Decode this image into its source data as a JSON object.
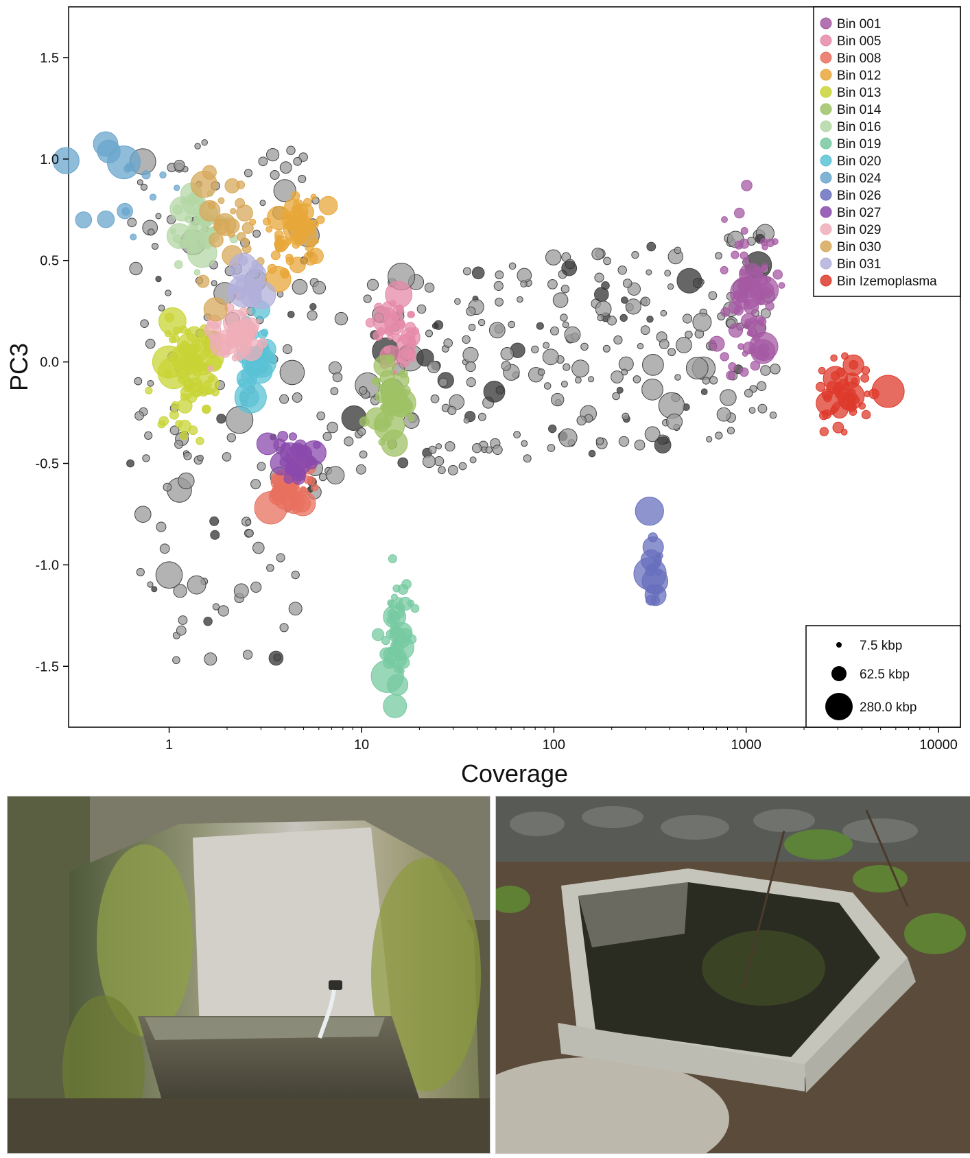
{
  "chart_data": {
    "type": "scatter",
    "xlabel": "Coverage",
    "ylabel": "PC3",
    "x_scale": "log",
    "xlim": [
      0.3,
      13000
    ],
    "ylim": [
      -1.8,
      1.75
    ],
    "x_ticks": [
      1,
      10,
      100,
      1000,
      10000
    ],
    "x_tick_labels": [
      "1",
      "10",
      "100",
      "1000",
      "10000"
    ],
    "y_ticks": [
      1.5,
      1.0,
      0.5,
      0.0,
      -0.5,
      -1.0,
      -1.5
    ],
    "y_tick_labels": [
      "1.5",
      "1.0",
      "0.5",
      "0.0",
      "-0.5",
      "-1.0",
      "-1.5"
    ],
    "grid": false,
    "legend_position": "top-right",
    "size_legend_position": "bottom-right",
    "size_legend": [
      {
        "label": "7.5 kbp",
        "kbp": 7.5
      },
      {
        "label": "62.5 kbp",
        "kbp": 62.5
      },
      {
        "label": "280.0 kbp",
        "kbp": 280.0
      }
    ],
    "unbinned_color": "#9a9a9a",
    "series": [
      {
        "name": "Bin 001",
        "color": "#a55aa3",
        "center": [
          1050,
          0.35
        ],
        "spread": [
          0.07,
          0.22
        ],
        "count": 70
      },
      {
        "name": "Bin 005",
        "color": "#e58aa8",
        "center": [
          15,
          0.15
        ],
        "spread": [
          0.06,
          0.1
        ],
        "count": 35
      },
      {
        "name": "Bin 008",
        "color": "#e8705f",
        "center": [
          4.2,
          -0.62
        ],
        "spread": [
          0.07,
          0.06
        ],
        "count": 35
      },
      {
        "name": "Bin 012",
        "color": "#e8a73a",
        "center": [
          4.4,
          0.65
        ],
        "spread": [
          0.07,
          0.1
        ],
        "count": 60
      },
      {
        "name": "Bin 013",
        "color": "#c8d435",
        "center": [
          1.3,
          -0.05
        ],
        "spread": [
          0.07,
          0.12
        ],
        "count": 80
      },
      {
        "name": "Bin 014",
        "color": "#9fc265",
        "center": [
          14.5,
          -0.2
        ],
        "spread": [
          0.05,
          0.09
        ],
        "count": 45
      },
      {
        "name": "Bin 016",
        "color": "#b4d7a6",
        "center": [
          1.4,
          0.68
        ],
        "spread": [
          0.07,
          0.1
        ],
        "count": 40
      },
      {
        "name": "Bin 019",
        "color": "#77c9a1",
        "center": [
          15,
          -1.35
        ],
        "spread": [
          0.035,
          0.14
        ],
        "count": 55
      },
      {
        "name": "Bin 020",
        "color": "#5bc2d5",
        "center": [
          2.8,
          0.05
        ],
        "spread": [
          0.06,
          0.1
        ],
        "count": 40
      },
      {
        "name": "Bin 024",
        "color": "#6aa6cc",
        "center": [
          0.6,
          0.85
        ],
        "spread": [
          0.1,
          0.12
        ],
        "count": 15
      },
      {
        "name": "Bin 026",
        "color": "#6870be",
        "center": [
          340,
          -1.0
        ],
        "spread": [
          0.02,
          0.12
        ],
        "count": 18
      },
      {
        "name": "Bin 027",
        "color": "#8a49ac",
        "center": [
          4.6,
          -0.48
        ],
        "spread": [
          0.05,
          0.06
        ],
        "count": 30
      },
      {
        "name": "Bin 029",
        "color": "#efadb8",
        "center": [
          2.2,
          0.12
        ],
        "spread": [
          0.05,
          0.1
        ],
        "count": 35
      },
      {
        "name": "Bin 030",
        "color": "#d7a85a",
        "center": [
          1.9,
          0.62
        ],
        "spread": [
          0.07,
          0.12
        ],
        "count": 25
      },
      {
        "name": "Bin 031",
        "color": "#b2b0db",
        "center": [
          2.5,
          0.38
        ],
        "spread": [
          0.05,
          0.06
        ],
        "count": 15
      },
      {
        "name": "Bin Izemoplasma",
        "color": "#dd3a2b",
        "center": [
          3300,
          -0.15
        ],
        "spread": [
          0.07,
          0.08
        ],
        "count": 45
      }
    ],
    "unbinned_count": 520
  },
  "photos": [
    {
      "subject": "stone fountain basin with moss and flowing spout"
    },
    {
      "subject": "hexagonal concrete spring basin in the ground"
    }
  ]
}
